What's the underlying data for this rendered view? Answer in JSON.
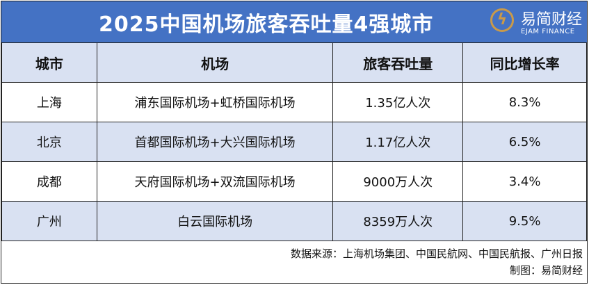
{
  "title": "2025中国机场旅客吞吐量4强城市",
  "logo": {
    "cn": "易简财经",
    "en": "EJAM FINANCE"
  },
  "colors": {
    "title_bg": "#4472c4",
    "header_bg": "#d9e1f2",
    "logo_gold": "#c99a4a"
  },
  "table": {
    "headers": [
      "城市",
      "机场",
      "旅客吞吐量",
      "同比增长率"
    ],
    "rows": [
      [
        "上海",
        "浦东国际机场+虹桥国际机场",
        "1.35亿人次",
        "8.3%"
      ],
      [
        "北京",
        "首都国际机场+大兴国际机场",
        "1.17亿人次",
        "6.5%"
      ],
      [
        "成都",
        "天府国际机场+双流国际机场",
        "9000万人次",
        "3.4%"
      ],
      [
        "广州",
        "白云国际机场",
        "8359万人次",
        "9.5%"
      ]
    ]
  },
  "footer": {
    "source": "数据来源：上海机场集团、中国民航网、中国民航报、广州日报",
    "credit": "制图：易简财经"
  }
}
